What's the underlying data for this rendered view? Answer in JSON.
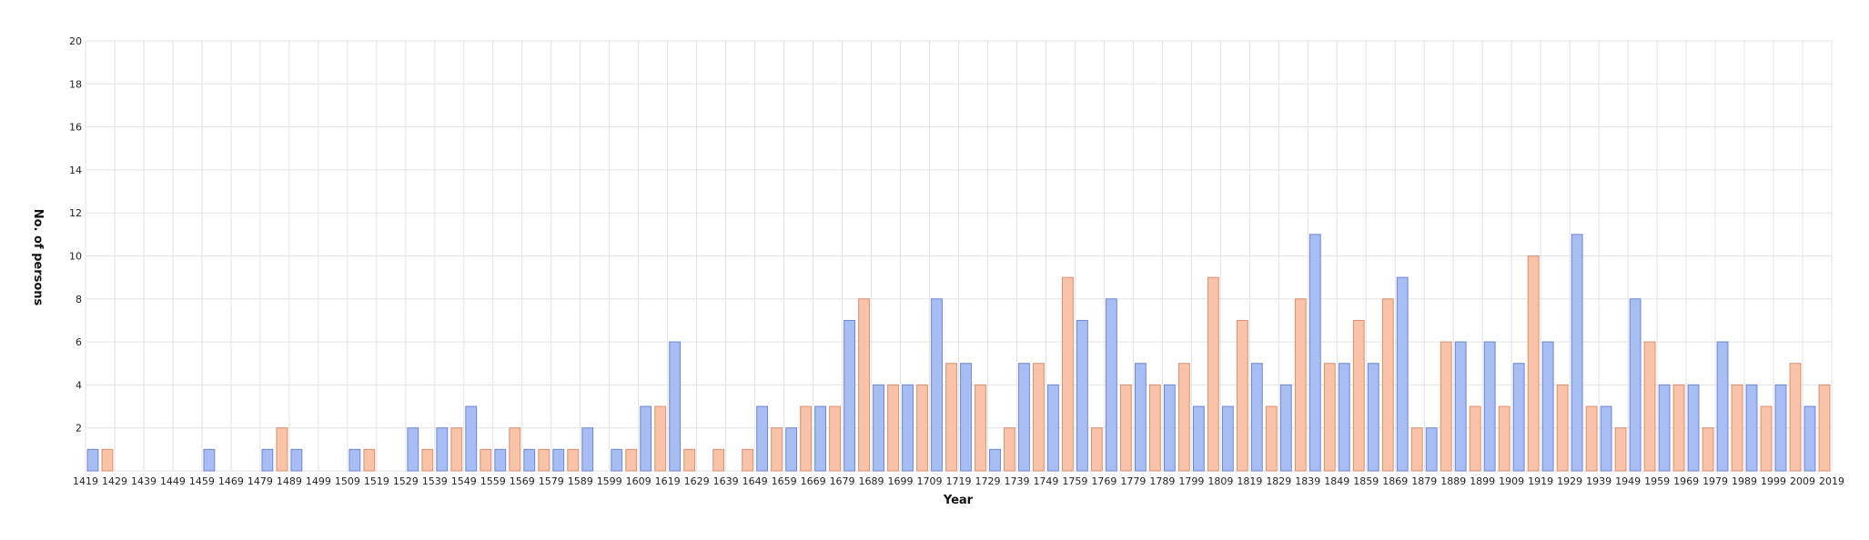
{
  "chart_data": {
    "type": "bar",
    "xlabel": "Year",
    "ylabel": "No. of persons",
    "ylim": [
      0,
      20
    ],
    "y_ticks": [
      2,
      4,
      6,
      8,
      10,
      12,
      14,
      16,
      18,
      20
    ],
    "x_tick_labels": [
      "1419",
      "1429",
      "1439",
      "1449",
      "1459",
      "1469",
      "1479",
      "1489",
      "1499",
      "1509",
      "1519",
      "1529",
      "1539",
      "1549",
      "1559",
      "1569",
      "1579",
      "1589",
      "1599",
      "1609",
      "1619",
      "1629",
      "1639",
      "1649",
      "1659",
      "1669",
      "1679",
      "1689",
      "1699",
      "1709",
      "1719",
      "1729",
      "1739",
      "1749",
      "1759",
      "1769",
      "1779",
      "1789",
      "1799",
      "1809",
      "1819",
      "1829",
      "1839",
      "1849",
      "1859",
      "1869",
      "1879",
      "1889",
      "1899",
      "1909",
      "1919",
      "1929",
      "1939",
      "1949",
      "1959",
      "1969",
      "1979",
      "1989",
      "1999",
      "2009",
      "2019"
    ],
    "grid": true,
    "bar_colors": [
      "#a9bdf5",
      "#f9c3aa"
    ],
    "bar_edge_colors": [
      "#6f86cc",
      "#d98f73"
    ],
    "values": [
      1,
      1,
      0,
      0,
      0,
      0,
      0,
      0,
      1,
      0,
      0,
      0,
      1,
      2,
      1,
      0,
      0,
      0,
      1,
      1,
      0,
      0,
      2,
      1,
      2,
      2,
      3,
      1,
      1,
      2,
      1,
      1,
      1,
      1,
      2,
      0,
      1,
      1,
      3,
      3,
      6,
      1,
      0,
      1,
      0,
      1,
      3,
      2,
      2,
      3,
      3,
      3,
      7,
      8,
      4,
      4,
      4,
      4,
      8,
      5,
      5,
      4,
      1,
      2,
      5,
      5,
      4,
      9,
      7,
      2,
      8,
      4,
      5,
      4,
      4,
      5,
      3,
      9,
      3,
      7,
      5,
      3,
      4,
      8,
      11,
      5,
      5,
      7,
      5,
      8,
      9,
      2,
      2,
      6,
      6,
      3,
      6,
      3,
      5,
      10,
      6,
      4,
      11,
      3,
      3,
      2,
      8,
      6,
      4,
      4,
      4,
      2,
      6,
      4,
      4,
      3,
      4,
      5,
      3,
      4
    ]
  }
}
